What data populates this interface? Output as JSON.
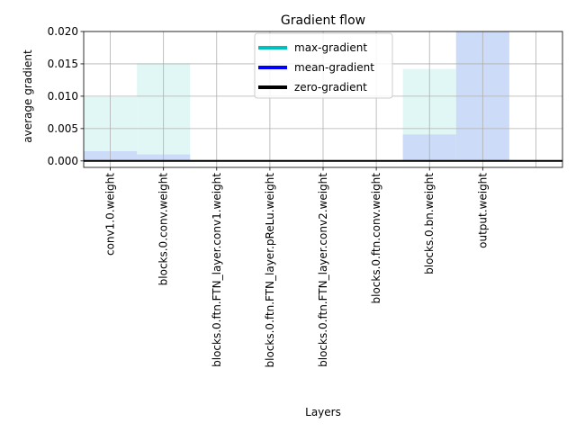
{
  "chart_data": {
    "type": "bar",
    "title": "Gradient flow",
    "xlabel": "Layers",
    "ylabel": "average gradient",
    "ylim": [
      -0.001,
      0.02
    ],
    "yticks": [
      "0.000",
      "0.005",
      "0.010",
      "0.015",
      "0.020"
    ],
    "grid": true,
    "legend_position": "upper-center",
    "categories": [
      "conv1.0.weight",
      "blocks.0.conv.weight",
      "blocks.0.ftn.FTN_layer.conv1.weight",
      "blocks.0.ftn.FTN_layer.pReLu.weight",
      "blocks.0.ftn.FTN_layer.conv2.weight",
      "blocks.0.ftn.conv.weight",
      "blocks.0.bn.weight",
      "output.weight"
    ],
    "series": [
      {
        "name": "max-gradient",
        "color": "#00bfbf",
        "bar_fill": "#e0f7f5",
        "values": [
          0.0099,
          0.0151,
          0.0,
          0.0,
          0.0,
          0.0,
          0.0142,
          0.02
        ]
      },
      {
        "name": "mean-gradient",
        "color": "#0000ff",
        "bar_fill": "#ccdcf8",
        "values": [
          0.0015,
          0.001,
          0.0,
          0.0,
          0.0,
          0.0,
          0.0041,
          0.02
        ]
      },
      {
        "name": "zero-gradient",
        "color": "#000000",
        "values": [
          0,
          0,
          0,
          0,
          0,
          0,
          0,
          0
        ]
      }
    ]
  }
}
